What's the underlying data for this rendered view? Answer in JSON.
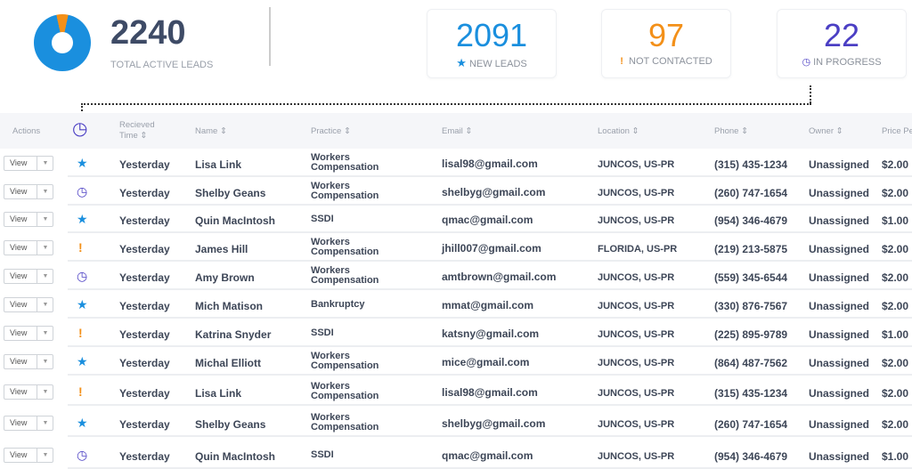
{
  "summary": {
    "total": "2240",
    "total_label": "TOTAL ACTIVE LEADS",
    "cards": [
      {
        "value": "2091",
        "label": "NEW LEADS",
        "icon": "star-icon",
        "color": "#1a8fde"
      },
      {
        "value": "97",
        "label": "NOT CONTACTED",
        "icon": "exclamation-icon",
        "color": "#f39019"
      },
      {
        "value": "22",
        "label": "IN PROGRESS",
        "icon": "clock-icon",
        "color": "#4b3fc4"
      }
    ]
  },
  "colors": {
    "blue": "#1a8fde",
    "orange": "#f39019",
    "purple": "#4b3fc4"
  },
  "headers": {
    "actions": "Actions",
    "received": "Recieved Time",
    "name": "Name",
    "practice": "Practice",
    "email": "Email",
    "location": "Location",
    "phone": "Phone",
    "owner": "Owner",
    "price": "Price Pe"
  },
  "view_label": "View",
  "rows": [
    {
      "status": "star",
      "time": "Yesterday",
      "name": "Lisa Link",
      "practice": "Workers Compensation",
      "email": "lisal98@gmail.com",
      "location": "JUNCOS, US-PR",
      "phone": "(315) 435-1234",
      "owner": "Unassigned",
      "price": "$2.00"
    },
    {
      "status": "clock",
      "time": "Yesterday",
      "name": "Shelby Geans",
      "practice": "Workers Compensation",
      "email": "shelbyg@gmail.com",
      "location": "JUNCOS, US-PR",
      "phone": "(260) 747-1654",
      "owner": "Unassigned",
      "price": "$2.00"
    },
    {
      "status": "star",
      "time": "Yesterday",
      "name": "Quin MacIntosh",
      "practice": "SSDI",
      "email": "qmac@gmail.com",
      "location": "JUNCOS, US-PR",
      "phone": "(954) 346-4679",
      "owner": "Unassigned",
      "price": "$1.00"
    },
    {
      "status": "excl",
      "time": "Yesterday",
      "name": "James Hill",
      "practice": "Workers Compensation",
      "email": "jhill007@gmail.com",
      "location": "FLORIDA, US-PR",
      "phone": "(219) 213-5875",
      "owner": "Unassigned",
      "price": "$2.00"
    },
    {
      "status": "clock",
      "time": "Yesterday",
      "name": "Amy Brown",
      "practice": "Workers Compensation",
      "email": "amtbrown@gmail.com",
      "location": "JUNCOS, US-PR",
      "phone": "(559) 345-6544",
      "owner": "Unassigned",
      "price": "$2.00"
    },
    {
      "status": "star",
      "time": "Yesterday",
      "name": "Mich Matison",
      "practice": "Bankruptcy",
      "email": "mmat@gmail.com",
      "location": "JUNCOS, US-PR",
      "phone": "(330) 876-7567",
      "owner": "Unassigned",
      "price": "$2.00"
    },
    {
      "status": "excl",
      "time": "Yesterday",
      "name": "Katrina Snyder",
      "practice": "SSDI",
      "email": "katsny@gmail.com",
      "location": "JUNCOS, US-PR",
      "phone": "(225) 895-9789",
      "owner": "Unassigned",
      "price": "$1.00"
    },
    {
      "status": "star",
      "time": "Yesterday",
      "name": "Michal Elliott",
      "practice": "Workers Compensation",
      "email": "mice@gmail.com",
      "location": "JUNCOS, US-PR",
      "phone": "(864) 487-7562",
      "owner": "Unassigned",
      "price": "$2.00"
    },
    {
      "status": "excl",
      "time": "Yesterday",
      "name": "Lisa Link",
      "practice": "Workers Compensation",
      "email": "lisal98@gmail.com",
      "location": "JUNCOS, US-PR",
      "phone": "(315) 435-1234",
      "owner": "Unassigned",
      "price": "$2.00"
    },
    {
      "status": "star",
      "time": "Yesterday",
      "name": "Shelby Geans",
      "practice": "Workers Compensation",
      "email": "shelbyg@gmail.com",
      "location": "JUNCOS, US-PR",
      "phone": "(260) 747-1654",
      "owner": "Unassigned",
      "price": "$2.00"
    },
    {
      "status": "clock",
      "time": "Yesterday",
      "name": "Quin MacIntosh",
      "practice": "SSDI",
      "email": "qmac@gmail.com",
      "location": "JUNCOS, US-PR",
      "phone": "(954) 346-4679",
      "owner": "Unassigned",
      "price": "$1.00"
    }
  ]
}
